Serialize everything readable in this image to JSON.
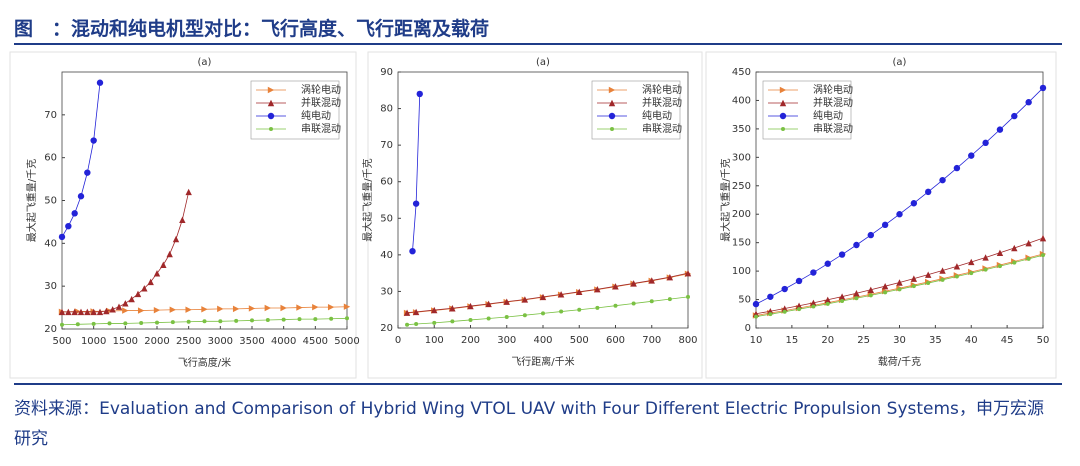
{
  "title": "图　：混动和纯电机型对比：飞行高度、飞行距离及载荷",
  "source": "资料来源：Evaluation and Comparison of Hybrid Wing VTOL UAV with Four Different Electric Propulsion Systems，申万宏源研究",
  "chart_data": [
    {
      "type": "line",
      "title": "(a)",
      "xlabel": "飞行高度/米",
      "ylabel": "最大起飞重量/千克",
      "xlim": [
        500,
        5000
      ],
      "xticks": [
        500,
        1000,
        1500,
        2000,
        2500,
        3000,
        3500,
        4000,
        4500,
        5000
      ],
      "ylim": [
        20,
        80
      ],
      "yticks": [
        20,
        30,
        40,
        50,
        60,
        70
      ],
      "legend": "upper right",
      "series": [
        {
          "name": "涡轮电动",
          "color": "#e8823a",
          "marker": "triangle-right",
          "x": [
            500,
            750,
            1000,
            1250,
            1500,
            1750,
            2000,
            2250,
            2500,
            2750,
            3000,
            3250,
            3500,
            3750,
            4000,
            4250,
            4500,
            4750,
            5000
          ],
          "values": [
            24.0,
            24.1,
            24.1,
            24.2,
            24.3,
            24.3,
            24.4,
            24.5,
            24.5,
            24.6,
            24.7,
            24.7,
            24.8,
            24.9,
            24.9,
            25.0,
            25.1,
            25.1,
            25.2
          ]
        },
        {
          "name": "并联混动",
          "color": "#a0282a",
          "marker": "triangle-up",
          "x": [
            500,
            600,
            700,
            800,
            900,
            1000,
            1100,
            1200,
            1300,
            1400,
            1500,
            1600,
            1700,
            1800,
            1900,
            2000,
            2100,
            2200,
            2300,
            2400,
            2500
          ],
          "values": [
            24,
            24,
            24,
            24,
            24,
            24,
            24,
            24.2,
            24.6,
            25.2,
            26,
            27,
            28.2,
            29.5,
            31,
            33,
            35,
            37.5,
            41,
            45.5,
            52
          ]
        },
        {
          "name": "纯电动",
          "color": "#2323d8",
          "marker": "circle",
          "x": [
            500,
            600,
            700,
            800,
            900,
            1000,
            1100
          ],
          "values": [
            41.5,
            44,
            47,
            51,
            56.5,
            64,
            77.5
          ]
        },
        {
          "name": "串联混动",
          "color": "#7ac143",
          "marker": "star",
          "x": [
            500,
            750,
            1000,
            1250,
            1500,
            1750,
            2000,
            2250,
            2500,
            2750,
            3000,
            3250,
            3500,
            3750,
            4000,
            4250,
            4500,
            4750,
            5000
          ],
          "values": [
            21.0,
            21.1,
            21.2,
            21.3,
            21.3,
            21.4,
            21.5,
            21.6,
            21.7,
            21.8,
            21.8,
            21.9,
            22.0,
            22.1,
            22.2,
            22.3,
            22.3,
            22.4,
            22.5
          ]
        }
      ]
    },
    {
      "type": "line",
      "title": "(a)",
      "xlabel": "飞行距离/千米",
      "ylabel": "最大起飞重量/千克",
      "xlim": [
        0,
        800
      ],
      "xticks": [
        0,
        100,
        200,
        300,
        400,
        500,
        600,
        700,
        800
      ],
      "ylim": [
        20,
        90
      ],
      "yticks": [
        20,
        30,
        40,
        50,
        60,
        70,
        80,
        90
      ],
      "legend": "upper right",
      "series": [
        {
          "name": "涡轮电动",
          "color": "#e8823a",
          "marker": "triangle-right",
          "x": [
            25,
            50,
            100,
            150,
            200,
            250,
            300,
            350,
            400,
            450,
            500,
            550,
            600,
            650,
            700,
            750,
            800
          ],
          "values": [
            24.1,
            24.3,
            24.8,
            25.3,
            25.9,
            26.5,
            27.1,
            27.7,
            28.4,
            29.1,
            29.8,
            30.5,
            31.3,
            32.1,
            32.9,
            33.8,
            34.8
          ]
        },
        {
          "name": "并联混动",
          "color": "#a0282a",
          "marker": "triangle-up",
          "x": [
            25,
            50,
            100,
            150,
            200,
            250,
            300,
            350,
            400,
            450,
            500,
            550,
            600,
            650,
            700,
            750,
            800
          ],
          "values": [
            24.2,
            24.4,
            24.9,
            25.4,
            26.0,
            26.6,
            27.2,
            27.8,
            28.5,
            29.2,
            29.9,
            30.6,
            31.4,
            32.2,
            33.0,
            33.9,
            35.0
          ]
        },
        {
          "name": "纯电动",
          "color": "#2323d8",
          "marker": "circle",
          "x": [
            40,
            50,
            60
          ],
          "values": [
            41,
            54,
            84
          ]
        },
        {
          "name": "串联混动",
          "color": "#7ac143",
          "marker": "star",
          "x": [
            25,
            50,
            100,
            150,
            200,
            250,
            300,
            350,
            400,
            450,
            500,
            550,
            600,
            650,
            700,
            750,
            800
          ],
          "values": [
            20.9,
            21.1,
            21.4,
            21.8,
            22.2,
            22.6,
            23.0,
            23.5,
            24.0,
            24.5,
            25.0,
            25.5,
            26.1,
            26.7,
            27.3,
            27.9,
            28.5
          ]
        }
      ]
    },
    {
      "type": "line",
      "title": "(a)",
      "xlabel": "载荷/千克",
      "ylabel": "最大起飞重量/千克",
      "xlim": [
        10,
        50
      ],
      "xticks": [
        10,
        15,
        20,
        25,
        30,
        35,
        40,
        45,
        50
      ],
      "ylim": [
        0,
        450
      ],
      "yticks": [
        0,
        50,
        100,
        150,
        200,
        250,
        300,
        350,
        400,
        450
      ],
      "legend": "upper left",
      "series": [
        {
          "name": "涡轮电动",
          "color": "#e8823a",
          "marker": "triangle-right",
          "x": [
            10,
            12,
            14,
            16,
            18,
            20,
            22,
            24,
            26,
            28,
            30,
            32,
            34,
            36,
            38,
            40,
            42,
            44,
            46,
            48,
            50
          ],
          "values": [
            22,
            26.3,
            30.6,
            35.1,
            39.8,
            44.5,
            49.4,
            54.3,
            59.4,
            64.7,
            70,
            75.5,
            81.0,
            86.7,
            92.6,
            98.5,
            104.6,
            110.7,
            117.0,
            123.5,
            130
          ]
        },
        {
          "name": "并联混动",
          "color": "#a0282a",
          "marker": "triangle-up",
          "x": [
            10,
            12,
            14,
            16,
            18,
            20,
            22,
            24,
            26,
            28,
            30,
            32,
            34,
            36,
            38,
            40,
            42,
            44,
            46,
            48,
            50
          ],
          "values": [
            25,
            29.5,
            34.2,
            39.1,
            44.2,
            49.6,
            55.2,
            61.1,
            67.2,
            73.5,
            80,
            86.8,
            93.8,
            101.0,
            108.4,
            116.1,
            124.0,
            132.2,
            140.6,
            149.2,
            158
          ]
        },
        {
          "name": "纯电动",
          "color": "#2323d8",
          "marker": "circle",
          "x": [
            10,
            12,
            14,
            16,
            18,
            20,
            22,
            24,
            26,
            28,
            30,
            32,
            34,
            36,
            38,
            40,
            42,
            44,
            46,
            48,
            50
          ],
          "values": [
            42,
            54.9,
            68.5,
            82.7,
            97.5,
            113,
            129.1,
            145.9,
            163.3,
            181.3,
            200,
            219.3,
            239.3,
            259.9,
            281.1,
            303,
            325.5,
            348.7,
            372.5,
            396.9,
            422
          ]
        },
        {
          "name": "串联混动",
          "color": "#7ac143",
          "marker": "star",
          "x": [
            10,
            12,
            14,
            16,
            18,
            20,
            22,
            24,
            26,
            28,
            30,
            32,
            34,
            36,
            38,
            40,
            42,
            44,
            46,
            48,
            50
          ],
          "values": [
            20,
            24.3,
            28.6,
            33.1,
            37.8,
            42.5,
            47.4,
            52.3,
            57.4,
            62.7,
            68,
            73.5,
            79.0,
            84.7,
            90.6,
            96.5,
            102.6,
            108.7,
            115.0,
            121.5,
            128
          ]
        }
      ]
    }
  ]
}
